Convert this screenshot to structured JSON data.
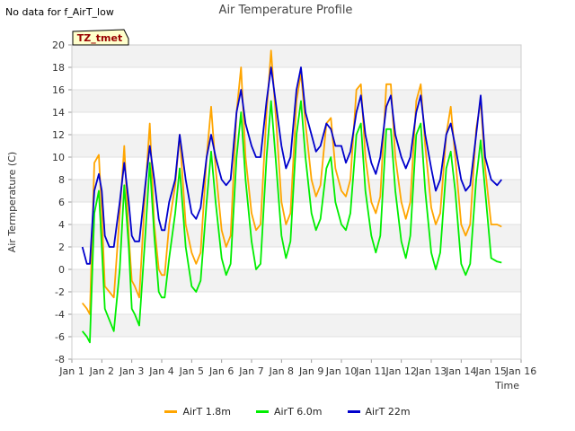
{
  "notice": "No data for f_AirT_low",
  "chart_data": {
    "type": "line",
    "title": "Air Temperature Profile",
    "xlabel": "Time",
    "ylabel": "Air Termperature (C)",
    "xlim": [
      1,
      16
    ],
    "ylim": [
      -8,
      20
    ],
    "x_ticks": [
      {
        "v": 1,
        "label": "Jan 1"
      },
      {
        "v": 2,
        "label": "Jan 2"
      },
      {
        "v": 3,
        "label": "Jan 3"
      },
      {
        "v": 4,
        "label": "Jan 4"
      },
      {
        "v": 5,
        "label": "Jan 5"
      },
      {
        "v": 6,
        "label": "Jan 6"
      },
      {
        "v": 7,
        "label": "Jan 7"
      },
      {
        "v": 8,
        "label": "Jan 8"
      },
      {
        "v": 9,
        "label": "Jan 9"
      },
      {
        "v": 10,
        "label": "Jan 10"
      },
      {
        "v": 11,
        "label": "Jan 11"
      },
      {
        "v": 12,
        "label": "Jan 12"
      },
      {
        "v": 13,
        "label": "Jan 13"
      },
      {
        "v": 14,
        "label": "Jan 14"
      },
      {
        "v": 15,
        "label": "Jan 15"
      },
      {
        "v": 16,
        "label": "Jan 16"
      }
    ],
    "y_ticks": [
      -8,
      -6,
      -4,
      -2,
      0,
      2,
      4,
      6,
      8,
      10,
      12,
      14,
      16,
      18,
      20
    ],
    "grid": true,
    "legend_position": "bottom",
    "annotation": "TZ_tmet",
    "series": [
      {
        "name": "AirT 1.8m",
        "color": "#ffa500",
        "x": [
          1.35,
          1.5,
          1.6,
          1.75,
          1.9,
          2.0,
          2.1,
          2.25,
          2.4,
          2.6,
          2.75,
          2.9,
          3.0,
          3.1,
          3.25,
          3.45,
          3.6,
          3.75,
          3.9,
          4.0,
          4.1,
          4.25,
          4.45,
          4.6,
          4.8,
          5.0,
          5.15,
          5.3,
          5.5,
          5.65,
          5.8,
          6.0,
          6.15,
          6.3,
          6.5,
          6.65,
          6.8,
          7.0,
          7.15,
          7.3,
          7.5,
          7.65,
          7.8,
          8.0,
          8.15,
          8.3,
          8.5,
          8.65,
          8.8,
          9.0,
          9.15,
          9.3,
          9.5,
          9.65,
          9.8,
          10.0,
          10.15,
          10.3,
          10.5,
          10.65,
          10.8,
          11.0,
          11.15,
          11.3,
          11.5,
          11.65,
          11.8,
          12.0,
          12.15,
          12.3,
          12.5,
          12.65,
          12.8,
          13.0,
          13.15,
          13.3,
          13.5,
          13.65,
          13.8,
          14.0,
          14.15,
          14.3,
          14.5,
          14.65,
          14.8,
          15.0,
          15.2,
          15.35
        ],
        "y": [
          -3.0,
          -3.5,
          -4.0,
          9.5,
          10.2,
          5.0,
          -1.5,
          -2.0,
          -2.5,
          5.0,
          11.0,
          3.0,
          -1.0,
          -1.5,
          -2.5,
          7.0,
          13.0,
          4.0,
          0.0,
          -0.5,
          -0.5,
          4.0,
          7.5,
          12.0,
          4.0,
          1.5,
          0.5,
          1.5,
          10.0,
          14.5,
          9.0,
          3.5,
          2.0,
          3.0,
          14.0,
          18.0,
          10.0,
          5.0,
          3.5,
          4.0,
          14.0,
          19.5,
          14.0,
          6.0,
          4.0,
          5.0,
          15.0,
          17.5,
          13.0,
          8.0,
          6.5,
          7.5,
          13.0,
          13.5,
          9.0,
          7.0,
          6.5,
          8.0,
          16.0,
          16.5,
          10.0,
          6.0,
          5.0,
          6.5,
          16.5,
          16.5,
          10.0,
          6.0,
          4.5,
          6.0,
          15.0,
          16.5,
          11.0,
          5.5,
          4.0,
          5.0,
          12.0,
          14.5,
          10.0,
          4.0,
          3.0,
          4.0,
          12.5,
          15.0,
          9.0,
          4.0,
          4.0,
          3.8
        ]
      },
      {
        "name": "AirT 6.0m",
        "color": "#00ee00",
        "x": [
          1.35,
          1.5,
          1.6,
          1.75,
          1.9,
          2.0,
          2.1,
          2.25,
          2.4,
          2.6,
          2.75,
          2.9,
          3.0,
          3.1,
          3.25,
          3.45,
          3.6,
          3.75,
          3.9,
          4.0,
          4.1,
          4.25,
          4.45,
          4.6,
          4.8,
          5.0,
          5.15,
          5.3,
          5.5,
          5.65,
          5.8,
          6.0,
          6.15,
          6.3,
          6.5,
          6.65,
          6.8,
          7.0,
          7.15,
          7.3,
          7.5,
          7.65,
          7.8,
          8.0,
          8.15,
          8.3,
          8.5,
          8.65,
          8.8,
          9.0,
          9.15,
          9.3,
          9.5,
          9.65,
          9.8,
          10.0,
          10.15,
          10.3,
          10.5,
          10.65,
          10.8,
          11.0,
          11.15,
          11.3,
          11.5,
          11.65,
          11.8,
          12.0,
          12.15,
          12.3,
          12.5,
          12.65,
          12.8,
          13.0,
          13.15,
          13.3,
          13.5,
          13.65,
          13.8,
          14.0,
          14.15,
          14.3,
          14.5,
          14.65,
          14.8,
          15.0,
          15.2,
          15.35
        ],
        "y": [
          -5.5,
          -6.0,
          -6.5,
          5.0,
          7.0,
          2.0,
          -3.5,
          -4.5,
          -5.5,
          0.0,
          7.5,
          2.0,
          -3.5,
          -4.0,
          -5.0,
          3.0,
          9.5,
          3.0,
          -2.0,
          -2.5,
          -2.5,
          1.0,
          5.0,
          9.0,
          2.0,
          -1.5,
          -2.0,
          -1.0,
          6.0,
          10.5,
          6.0,
          1.0,
          -0.5,
          0.5,
          10.0,
          14.0,
          8.0,
          2.5,
          0.0,
          0.5,
          10.0,
          15.0,
          10.0,
          3.0,
          1.0,
          2.5,
          12.0,
          15.0,
          10.0,
          5.0,
          3.5,
          4.5,
          9.0,
          10.0,
          6.0,
          4.0,
          3.5,
          5.0,
          12.0,
          13.0,
          7.0,
          3.0,
          1.5,
          3.0,
          12.5,
          12.5,
          7.0,
          2.5,
          1.0,
          3.0,
          12.0,
          13.0,
          7.0,
          1.5,
          0.0,
          1.5,
          9.0,
          10.5,
          7.0,
          0.5,
          -0.5,
          0.5,
          8.0,
          11.5,
          7.0,
          1.0,
          0.7,
          0.6
        ]
      },
      {
        "name": "AirT 22m",
        "color": "#0000cc",
        "x": [
          1.35,
          1.5,
          1.6,
          1.75,
          1.9,
          2.0,
          2.1,
          2.25,
          2.4,
          2.6,
          2.75,
          2.9,
          3.0,
          3.1,
          3.25,
          3.45,
          3.6,
          3.75,
          3.9,
          4.0,
          4.1,
          4.25,
          4.45,
          4.6,
          4.8,
          5.0,
          5.15,
          5.3,
          5.5,
          5.65,
          5.8,
          6.0,
          6.15,
          6.3,
          6.5,
          6.65,
          6.8,
          7.0,
          7.15,
          7.3,
          7.5,
          7.65,
          7.8,
          8.0,
          8.15,
          8.3,
          8.5,
          8.65,
          8.8,
          9.0,
          9.15,
          9.3,
          9.5,
          9.65,
          9.8,
          10.0,
          10.15,
          10.3,
          10.5,
          10.65,
          10.8,
          11.0,
          11.15,
          11.3,
          11.5,
          11.65,
          11.8,
          12.0,
          12.15,
          12.3,
          12.5,
          12.65,
          12.8,
          13.0,
          13.15,
          13.3,
          13.5,
          13.65,
          13.8,
          14.0,
          14.15,
          14.3,
          14.5,
          14.65,
          14.8,
          15.0,
          15.2,
          15.35
        ],
        "y": [
          2.0,
          0.5,
          0.5,
          7.0,
          8.5,
          7.0,
          3.0,
          2.0,
          2.0,
          6.0,
          9.5,
          6.0,
          3.0,
          2.5,
          2.5,
          7.5,
          11.0,
          8.0,
          4.5,
          3.5,
          3.5,
          6.0,
          8.0,
          12.0,
          8.0,
          5.0,
          4.5,
          5.5,
          10.0,
          12.0,
          10.0,
          8.0,
          7.5,
          8.0,
          14.0,
          16.0,
          13.0,
          11.0,
          10.0,
          10.0,
          15.0,
          18.0,
          15.0,
          11.0,
          9.0,
          10.0,
          16.0,
          18.0,
          14.0,
          12.0,
          10.5,
          11.0,
          13.0,
          12.5,
          11.0,
          11.0,
          9.5,
          10.5,
          14.0,
          15.5,
          12.0,
          9.5,
          8.5,
          10.0,
          14.5,
          15.5,
          12.0,
          10.0,
          9.0,
          10.0,
          14.0,
          15.5,
          12.0,
          9.0,
          7.0,
          8.0,
          12.0,
          13.0,
          11.0,
          8.0,
          7.0,
          7.5,
          12.0,
          15.5,
          10.0,
          8.0,
          7.5,
          8.0
        ]
      }
    ]
  }
}
